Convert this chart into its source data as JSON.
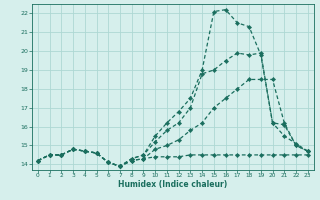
{
  "xlabel": "Humidex (Indice chaleur)",
  "bg_color": "#d6efec",
  "grid_color": "#aed8d3",
  "line_color": "#1a6e5e",
  "xlim": [
    -0.5,
    23.5
  ],
  "ylim": [
    13.7,
    22.5
  ],
  "xticks": [
    0,
    1,
    2,
    3,
    4,
    5,
    6,
    7,
    8,
    9,
    10,
    11,
    12,
    13,
    14,
    15,
    16,
    17,
    18,
    19,
    20,
    21,
    22,
    23
  ],
  "yticks": [
    14,
    15,
    16,
    17,
    18,
    19,
    20,
    21,
    22
  ],
  "series": [
    {
      "x": [
        0,
        1,
        2,
        3,
        4,
        5,
        6,
        7,
        8,
        9,
        10,
        11,
        12,
        13,
        14,
        15,
        16,
        17,
        18,
        19,
        20,
        21,
        22,
        23
      ],
      "y": [
        14.2,
        14.5,
        14.5,
        14.8,
        14.7,
        14.6,
        14.1,
        13.9,
        14.2,
        14.3,
        14.4,
        14.4,
        14.4,
        14.5,
        14.5,
        14.5,
        14.5,
        14.5,
        14.5,
        14.5,
        14.5,
        14.5,
        14.5,
        14.5
      ]
    },
    {
      "x": [
        0,
        1,
        2,
        3,
        4,
        5,
        6,
        7,
        8,
        9,
        10,
        11,
        12,
        13,
        14,
        15,
        16,
        17,
        18,
        19,
        20,
        21,
        22,
        23
      ],
      "y": [
        14.2,
        14.5,
        14.5,
        14.8,
        14.7,
        14.6,
        14.1,
        13.9,
        14.2,
        14.3,
        14.8,
        15.0,
        15.3,
        15.8,
        16.2,
        17.0,
        17.5,
        18.0,
        18.5,
        18.5,
        18.5,
        16.2,
        15.0,
        14.7
      ]
    },
    {
      "x": [
        0,
        1,
        2,
        3,
        4,
        5,
        6,
        7,
        8,
        9,
        10,
        11,
        12,
        13,
        14,
        15,
        16,
        17,
        18,
        19,
        20,
        21,
        22,
        23
      ],
      "y": [
        14.2,
        14.5,
        14.5,
        14.8,
        14.7,
        14.6,
        14.1,
        13.9,
        14.3,
        14.5,
        15.2,
        15.8,
        16.2,
        17.0,
        18.8,
        19.0,
        19.5,
        19.9,
        19.8,
        19.9,
        16.2,
        16.1,
        15.0,
        14.7
      ]
    },
    {
      "x": [
        0,
        1,
        2,
        3,
        4,
        5,
        6,
        7,
        8,
        9,
        10,
        11,
        12,
        13,
        14,
        15,
        16,
        17,
        18,
        19,
        20,
        21,
        22,
        23
      ],
      "y": [
        14.2,
        14.5,
        14.5,
        14.8,
        14.7,
        14.6,
        14.1,
        13.9,
        14.3,
        14.5,
        15.5,
        16.2,
        16.8,
        17.5,
        19.0,
        22.1,
        22.2,
        21.5,
        21.3,
        19.8,
        16.2,
        15.5,
        15.1,
        14.7
      ]
    }
  ]
}
